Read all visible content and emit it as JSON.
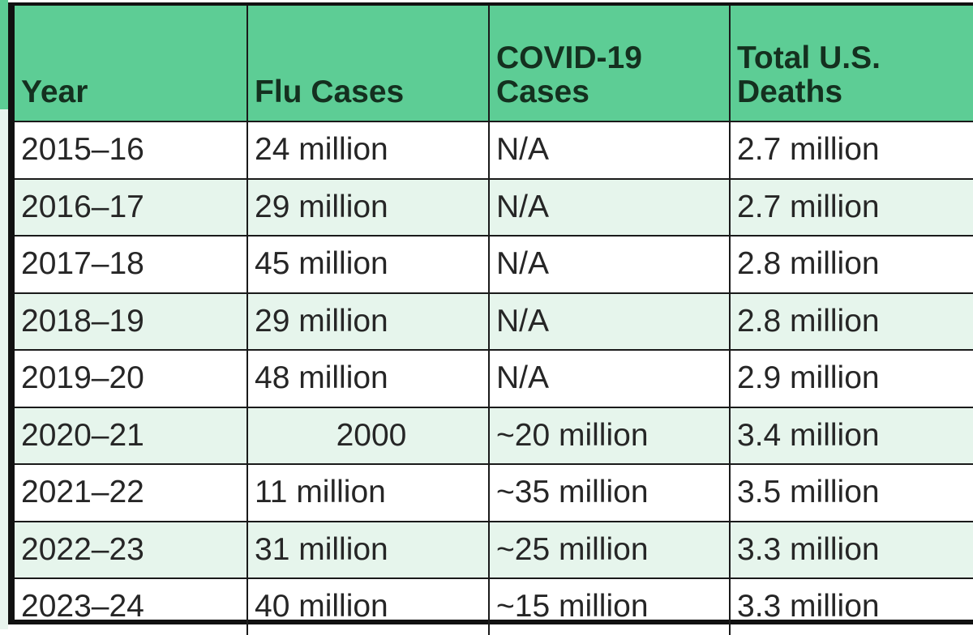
{
  "table": {
    "headers": [
      "Year",
      "Flu Cases",
      "COVID-19 Cases",
      "Total U.S. Deaths"
    ],
    "rows": [
      [
        "2015–16",
        "24 million",
        "N/A",
        "2.7 million"
      ],
      [
        "2016–17",
        "29 million",
        "N/A",
        "2.7 million"
      ],
      [
        "2017–18",
        "45 million",
        "N/A",
        "2.8 million"
      ],
      [
        "2018–19",
        "29 million",
        "N/A",
        "2.8 million"
      ],
      [
        "2019–20",
        "48 million",
        "N/A",
        "2.9 million"
      ],
      [
        "2020–21",
        "2000",
        "~20 million",
        "3.4 million"
      ],
      [
        "2021–22",
        "11 million",
        "~35 million",
        "3.5 million"
      ],
      [
        "2022–23",
        "31 million",
        "~25 million",
        "3.3 million"
      ],
      [
        "2023–24",
        "40 million",
        "~15 million",
        "3.3 million"
      ]
    ]
  },
  "colors": {
    "header": "#5dcd95",
    "alt_row": "#e6f5ec",
    "border": "#1a1a1a"
  }
}
